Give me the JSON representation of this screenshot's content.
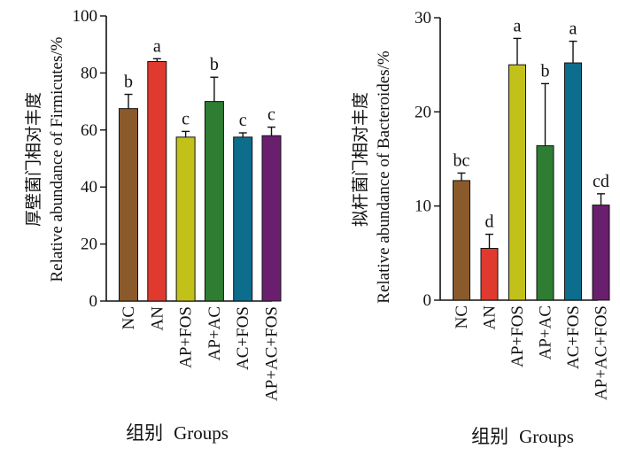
{
  "chart_data": [
    {
      "type": "bar",
      "ylabel_cn": "厚壁菌门相对丰度",
      "ylabel_en": "Relative abundance of Firmicutes/%",
      "xlabel_cn": "组别",
      "xlabel_en": "Groups",
      "ylim": [
        0,
        100
      ],
      "yticks": [
        "0",
        "20",
        "40",
        "60",
        "80",
        "100"
      ],
      "categories": [
        "NC",
        "AN",
        "AP+FOS",
        "AP+AC",
        "AC+FOS",
        "AP+AC+FOS"
      ],
      "values": [
        67.5,
        84,
        57.5,
        70,
        57.5,
        58
      ],
      "errors": [
        5,
        1,
        2,
        8.5,
        1.5,
        3
      ],
      "labels": [
        "b",
        "a",
        "c",
        "b",
        "c",
        "c"
      ],
      "colors": [
        "#8B5A2B",
        "#E03A2F",
        "#C2C11A",
        "#2E7D32",
        "#0C6E8C",
        "#6A1F6E"
      ]
    },
    {
      "type": "bar",
      "ylabel_cn": "拟杆菌门相对丰度",
      "ylabel_en": "Relative abundance of Bacteroides/%",
      "xlabel_cn": "组别",
      "xlabel_en": "Groups",
      "ylim": [
        0,
        30
      ],
      "yticks": [
        "0",
        "10",
        "20",
        "30"
      ],
      "categories": [
        "NC",
        "AN",
        "AP+FOS",
        "AP+AC",
        "AC+FOS",
        "AP+AC+FOS"
      ],
      "values": [
        12.7,
        5.5,
        25,
        16.4,
        25.2,
        10.1
      ],
      "errors": [
        0.8,
        1.5,
        2.8,
        6.6,
        2.3,
        1.2
      ],
      "labels": [
        "bc",
        "d",
        "a",
        "b",
        "a",
        "cd"
      ],
      "colors": [
        "#8B5A2B",
        "#E03A2F",
        "#C2C11A",
        "#2E7D32",
        "#0C6E8C",
        "#6A1F6E"
      ]
    }
  ]
}
